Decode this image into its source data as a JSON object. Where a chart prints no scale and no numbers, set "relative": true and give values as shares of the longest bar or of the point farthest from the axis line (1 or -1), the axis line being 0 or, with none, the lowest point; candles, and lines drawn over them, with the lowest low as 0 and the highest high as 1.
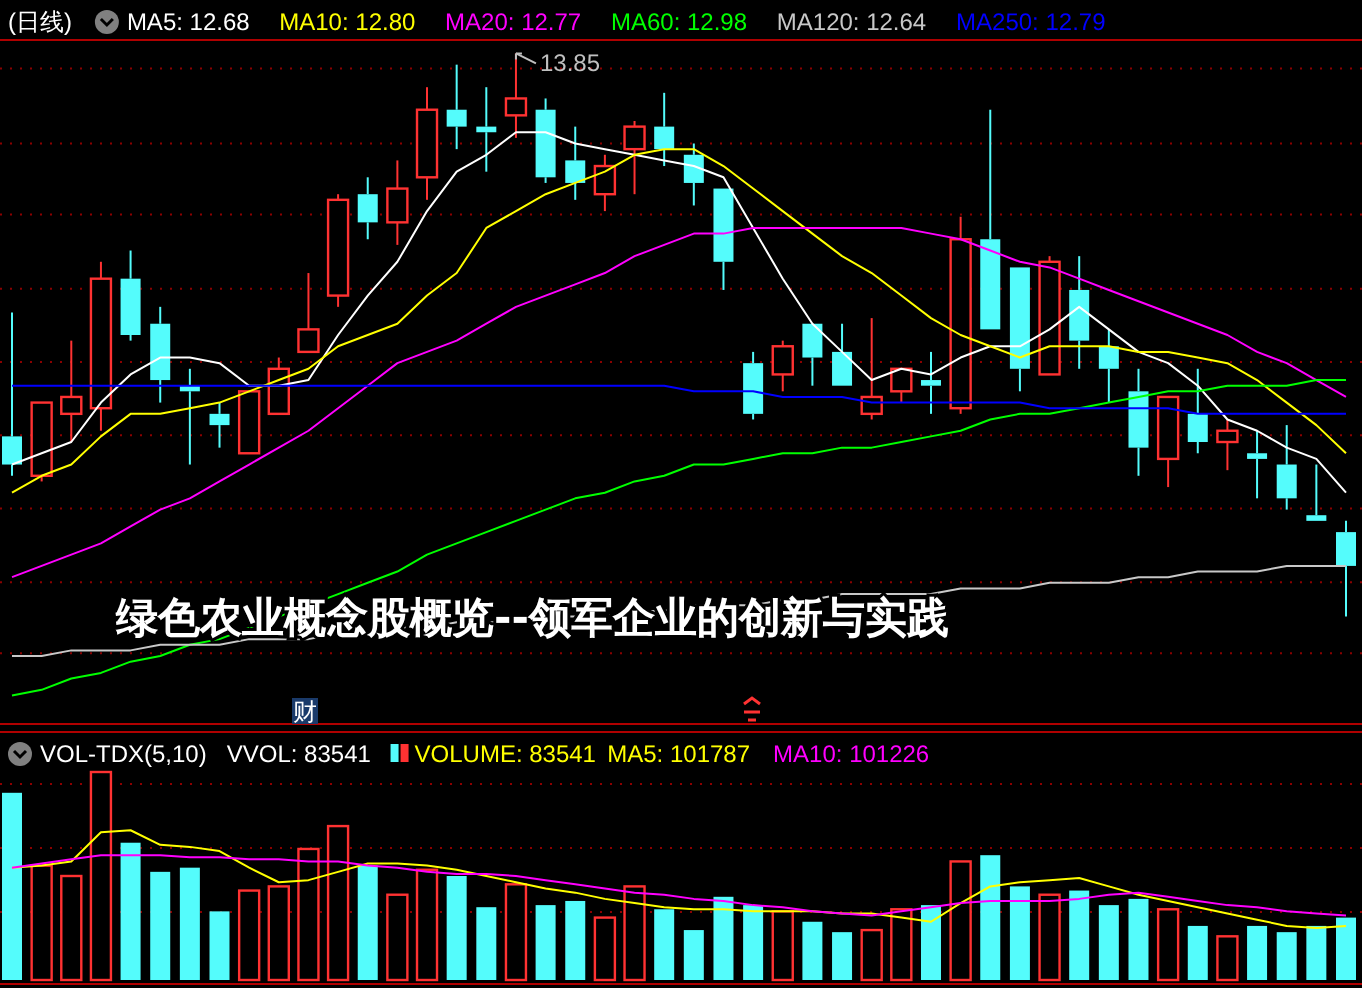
{
  "chart_data": [
    {
      "type": "candlestick",
      "title": "绿色农业概念股概览--领军企业的创新与实践",
      "subtitle": "(日线)",
      "relative": true,
      "legend": "top left",
      "ref_lines": [
        {
          "axis": "y",
          "value": 0.973,
          "color": "#8b0000",
          "line_style": "dotted"
        },
        {
          "axis": "y",
          "value": 0.84,
          "color": "#8b0000",
          "line_style": "dotted"
        },
        {
          "axis": "y",
          "value": 0.714,
          "color": "#8b0000",
          "line_style": "dotted"
        },
        {
          "axis": "y",
          "value": 0.582,
          "color": "#8b0000",
          "line_style": "dotted"
        },
        {
          "axis": "y",
          "value": 0.452,
          "color": "#8b0000",
          "line_style": "dotted"
        },
        {
          "axis": "y",
          "value": 0.322,
          "color": "#8b0000",
          "line_style": "dotted"
        },
        {
          "axis": "y",
          "value": 0.192,
          "color": "#8b0000",
          "line_style": "dotted"
        },
        {
          "axis": "y",
          "value": 0.061,
          "color": "#8b0000",
          "line_style": "dotted"
        },
        {
          "axis": "y",
          "value": -0.065,
          "color": "#8b0000",
          "line_style": "dotted"
        }
      ],
      "categories": [
        null,
        null,
        null,
        null,
        null,
        null,
        null,
        null,
        null,
        null,
        null,
        null,
        null,
        null,
        null,
        null,
        null,
        null,
        null,
        null,
        null,
        null,
        null,
        null,
        null,
        null,
        null,
        null,
        null,
        null,
        null,
        null,
        null,
        null,
        null,
        null,
        null,
        null,
        null,
        null,
        null,
        null,
        null,
        null,
        null,
        null
      ],
      "ohlc": [
        [
          0.32,
          0.54,
          0.25,
          0.27
        ],
        [
          0.25,
          0.38,
          0.24,
          0.38
        ],
        [
          0.36,
          0.49,
          0.31,
          0.39
        ],
        [
          0.37,
          0.63,
          0.33,
          0.6
        ],
        [
          0.6,
          0.65,
          0.49,
          0.5
        ],
        [
          0.52,
          0.55,
          0.38,
          0.42
        ],
        [
          0.41,
          0.44,
          0.27,
          0.4
        ],
        [
          0.36,
          0.38,
          0.3,
          0.34
        ],
        [
          0.29,
          0.4,
          0.29,
          0.4
        ],
        [
          0.36,
          0.46,
          0.36,
          0.44
        ],
        [
          0.47,
          0.61,
          0.47,
          0.51
        ],
        [
          0.57,
          0.75,
          0.55,
          0.74
        ],
        [
          0.75,
          0.78,
          0.67,
          0.7
        ],
        [
          0.7,
          0.81,
          0.66,
          0.76
        ],
        [
          0.78,
          0.94,
          0.74,
          0.9
        ],
        [
          0.9,
          0.98,
          0.83,
          0.87
        ],
        [
          0.87,
          0.94,
          0.79,
          0.86
        ],
        [
          0.89,
          1,
          0.85,
          0.92
        ],
        [
          0.9,
          0.92,
          0.77,
          0.78
        ],
        [
          0.81,
          0.87,
          0.74,
          0.77
        ],
        [
          0.75,
          0.82,
          0.72,
          0.8
        ],
        [
          0.83,
          0.88,
          0.75,
          0.87
        ],
        [
          0.87,
          0.93,
          0.8,
          0.83
        ],
        [
          0.82,
          0.84,
          0.73,
          0.77
        ],
        [
          0.76,
          0.76,
          0.58,
          0.63
        ],
        [
          0.45,
          0.47,
          0.35,
          0.36
        ],
        [
          0.43,
          0.49,
          0.4,
          0.48
        ],
        [
          0.52,
          0.52,
          0.41,
          0.46
        ],
        [
          0.47,
          0.52,
          0.41,
          0.41
        ],
        [
          0.36,
          0.53,
          0.35,
          0.39
        ],
        [
          0.4,
          0.44,
          0.38,
          0.44
        ],
        [
          0.42,
          0.47,
          0.36,
          0.41
        ],
        [
          0.37,
          0.71,
          0.36,
          0.67
        ],
        [
          0.67,
          0.9,
          0.51,
          0.51
        ],
        [
          0.62,
          0.62,
          0.4,
          0.44
        ],
        [
          0.43,
          0.64,
          0.43,
          0.63
        ],
        [
          0.58,
          0.64,
          0.44,
          0.49
        ],
        [
          0.48,
          0.51,
          0.38,
          0.44
        ],
        [
          0.4,
          0.44,
          0.25,
          0.3
        ],
        [
          0.28,
          0.39,
          0.23,
          0.39
        ],
        [
          0.36,
          0.44,
          0.29,
          0.31
        ],
        [
          0.31,
          0.35,
          0.26,
          0.33
        ],
        [
          0.29,
          0.33,
          0.21,
          0.28
        ],
        [
          0.27,
          0.34,
          0.19,
          0.21
        ],
        [
          0.18,
          0.27,
          0.17,
          0.17
        ],
        [
          0.15,
          0.17,
          0,
          0.09
        ]
      ],
      "colors": [
        "#54fcfc",
        "#ff3232",
        "#ff3232",
        "#ff3232",
        "#54fcfc",
        "#54fcfc",
        "#54fcfc",
        "#54fcfc",
        "#ff3232",
        "#ff3232",
        "#ff3232",
        "#ff3232",
        "#54fcfc",
        "#ff3232",
        "#ff3232",
        "#54fcfc",
        "#54fcfc",
        "#ff3232",
        "#54fcfc",
        "#54fcfc",
        "#ff3232",
        "#ff3232",
        "#54fcfc",
        "#54fcfc",
        "#54fcfc",
        "#54fcfc",
        "#ff3232",
        "#54fcfc",
        "#54fcfc",
        "#ff3232",
        "#ff3232",
        "#54fcfc",
        "#ff3232",
        "#54fcfc",
        "#54fcfc",
        "#ff3232",
        "#54fcfc",
        "#54fcfc",
        "#54fcfc",
        "#ff3232",
        "#54fcfc",
        "#ff3232",
        "#54fcfc",
        "#54fcfc",
        "#54fcfc",
        "#54fcfc"
      ],
      "series": [
        {
          "name": "MA5: 12.68",
          "type": "line",
          "color": "#ffffff",
          "values": [
            0.27,
            0.29,
            0.31,
            0.38,
            0.43,
            0.46,
            0.46,
            0.45,
            0.41,
            0.41,
            0.42,
            0.5,
            0.57,
            0.63,
            0.72,
            0.79,
            0.82,
            0.86,
            0.86,
            0.84,
            0.83,
            0.82,
            0.81,
            0.8,
            0.78,
            0.69,
            0.6,
            0.52,
            0.47,
            0.42,
            0.44,
            0.43,
            0.46,
            0.48,
            0.48,
            0.51,
            0.55,
            0.51,
            0.47,
            0.45,
            0.41,
            0.35,
            0.33,
            0.3,
            0.28,
            0.22
          ]
        },
        {
          "name": "MA10: 12.80",
          "type": "line",
          "color": "#ffff00",
          "values": [
            0.22,
            0.25,
            0.27,
            0.32,
            0.36,
            0.36,
            0.37,
            0.38,
            0.4,
            0.42,
            0.44,
            0.48,
            0.5,
            0.52,
            0.57,
            0.61,
            0.69,
            0.72,
            0.75,
            0.77,
            0.79,
            0.82,
            0.83,
            0.83,
            0.8,
            0.76,
            0.72,
            0.68,
            0.64,
            0.61,
            0.57,
            0.53,
            0.5,
            0.48,
            0.46,
            0.48,
            0.48,
            0.48,
            0.47,
            0.47,
            0.46,
            0.45,
            0.42,
            0.38,
            0.34,
            0.29
          ]
        },
        {
          "name": "MA20: 12.77",
          "type": "line",
          "color": "#ff00ff",
          "values": [
            0.07,
            0.09,
            0.11,
            0.13,
            0.16,
            0.19,
            0.21,
            0.24,
            0.27,
            0.3,
            0.33,
            0.37,
            0.41,
            0.45,
            0.47,
            0.49,
            0.52,
            0.55,
            0.57,
            0.59,
            0.61,
            0.64,
            0.66,
            0.68,
            0.68,
            0.69,
            0.69,
            0.69,
            0.69,
            0.69,
            0.69,
            0.68,
            0.67,
            0.65,
            0.63,
            0.62,
            0.6,
            0.58,
            0.56,
            0.54,
            0.52,
            0.5,
            0.47,
            0.45,
            0.42,
            0.39
          ]
        },
        {
          "name": "MA60: 12.98",
          "type": "line",
          "color": "#00ff00",
          "values": [
            -0.14,
            -0.13,
            -0.11,
            -0.1,
            -0.08,
            -0.07,
            -0.05,
            -0.04,
            -0.02,
            0,
            null,
            0.04,
            0.06,
            0.08,
            0.11,
            0.13,
            0.15,
            0.17,
            0.19,
            0.21,
            0.22,
            0.24,
            0.25,
            0.27,
            0.27,
            0.28,
            0.29,
            0.29,
            0.3,
            0.3,
            0.31,
            0.32,
            0.33,
            0.35,
            0.36,
            0.36,
            0.37,
            0.38,
            0.39,
            0.4,
            0.4,
            0.41,
            0.41,
            0.41,
            0.42,
            0.42
          ]
        },
        {
          "name": "MA120: 12.64",
          "type": "line",
          "color": "#c8c8c8",
          "values": [
            -0.07,
            -0.07,
            -0.06,
            -0.06,
            -0.06,
            -0.05,
            -0.05,
            -0.05,
            -0.04,
            -0.04,
            -0.04,
            -0.03,
            -0.03,
            -0.02,
            -0.02,
            -0.01,
            -0.01,
            -0.01,
            0,
            0,
            0,
            0.01,
            0.01,
            0.02,
            0.02,
            0.02,
            0.03,
            0.03,
            0.04,
            0.04,
            0.04,
            0.04,
            0.05,
            0.05,
            0.05,
            0.06,
            0.06,
            0.06,
            0.07,
            0.07,
            0.08,
            0.08,
            0.08,
            0.09,
            0.09,
            0.09
          ]
        },
        {
          "name": "MA250: 12.79",
          "type": "line",
          "color": "#0000ff",
          "values": [
            0.41,
            0.41,
            0.41,
            0.41,
            0.41,
            0.41,
            0.41,
            0.41,
            0.41,
            0.41,
            0.41,
            0.41,
            0.41,
            0.41,
            0.41,
            0.41,
            0.41,
            0.41,
            0.41,
            0.41,
            0.41,
            0.41,
            0.41,
            0.4,
            0.4,
            0.4,
            0.39,
            0.39,
            0.39,
            0.38,
            0.38,
            0.38,
            0.38,
            0.38,
            0.38,
            0.37,
            0.37,
            0.37,
            0.37,
            0.37,
            0.36,
            0.36,
            0.36,
            0.36,
            0.36,
            0.36
          ]
        }
      ],
      "annotations": [
        "13.85",
        "财"
      ]
    },
    {
      "type": "bar",
      "title": "VOL-TDX(5,10)",
      "subtitle": "VVOL: 83541",
      "relative": true,
      "legend": "top left",
      "ref_lines": [
        {
          "axis": "y",
          "value": 0.942,
          "color": "#8b0000",
          "line_style": "dotted"
        },
        {
          "axis": "y",
          "value": 0.635,
          "color": "#8b0000",
          "line_style": "dotted"
        },
        {
          "axis": "y",
          "value": 0.327,
          "color": "#8b0000",
          "line_style": "dotted"
        }
      ],
      "categories": [
        null,
        null,
        null,
        null,
        null,
        null,
        null,
        null,
        null,
        null,
        null,
        null,
        null,
        null,
        null,
        null,
        null,
        null,
        null,
        null,
        null,
        null,
        null,
        null,
        null,
        null,
        null,
        null,
        null,
        null,
        null,
        null,
        null,
        null,
        null,
        null,
        null,
        null,
        null,
        null,
        null,
        null,
        null,
        null,
        null,
        null
      ],
      "series": [
        {
          "name": "VOLUME: 83541",
          "type": "bar",
          "color": "#ffff00",
          "values": [
            0.9,
            0.55,
            0.5,
            1,
            0.66,
            0.52,
            0.54,
            0.33,
            0.43,
            0.45,
            0.63,
            0.74,
            0.55,
            0.41,
            0.53,
            0.5,
            0.35,
            0.46,
            0.36,
            0.38,
            0.3,
            0.45,
            0.34,
            0.24,
            0.4,
            0.36,
            0.33,
            0.28,
            0.23,
            0.24,
            0.34,
            0.36,
            0.57,
            0.6,
            0.45,
            0.41,
            0.43,
            0.36,
            0.39,
            0.34,
            0.26,
            0.21,
            0.26,
            0.23,
            0.26,
            0.3
          ],
          "colors": [
            "#54fcfc",
            "#ff3232",
            "#ff3232",
            "#ff3232",
            "#54fcfc",
            "#54fcfc",
            "#54fcfc",
            "#54fcfc",
            "#ff3232",
            "#ff3232",
            "#ff3232",
            "#ff3232",
            "#54fcfc",
            "#ff3232",
            "#ff3232",
            "#54fcfc",
            "#54fcfc",
            "#ff3232",
            "#54fcfc",
            "#54fcfc",
            "#ff3232",
            "#ff3232",
            "#54fcfc",
            "#54fcfc",
            "#54fcfc",
            "#54fcfc",
            "#ff3232",
            "#54fcfc",
            "#54fcfc",
            "#ff3232",
            "#ff3232",
            "#54fcfc",
            "#ff3232",
            "#54fcfc",
            "#54fcfc",
            "#ff3232",
            "#54fcfc",
            "#54fcfc",
            "#54fcfc",
            "#ff3232",
            "#54fcfc",
            "#ff3232",
            "#54fcfc",
            "#54fcfc",
            "#54fcfc",
            "#54fcfc"
          ]
        },
        {
          "name": "MA5: 101787",
          "type": "line",
          "color": "#ffff00",
          "values": [
            0.54,
            0.55,
            0.57,
            0.71,
            0.72,
            0.65,
            0.64,
            0.62,
            0.54,
            0.47,
            0.48,
            0.52,
            0.56,
            0.56,
            0.55,
            0.53,
            0.5,
            0.47,
            0.44,
            0.42,
            0.39,
            0.37,
            0.35,
            0.34,
            0.34,
            0.33,
            0.33,
            0.33,
            0.32,
            0.32,
            0.3,
            0.28,
            0.37,
            0.45,
            0.47,
            0.48,
            0.49,
            0.45,
            0.41,
            0.38,
            0.35,
            0.32,
            0.29,
            0.26,
            0.25,
            0.26
          ]
        },
        {
          "name": "MA10: 101226",
          "type": "line",
          "color": "#ff00ff",
          "values": [
            0.54,
            0.56,
            0.58,
            0.6,
            0.6,
            0.6,
            0.59,
            0.59,
            0.58,
            0.58,
            0.57,
            0.57,
            0.55,
            0.54,
            0.52,
            0.51,
            0.51,
            0.5,
            0.48,
            0.46,
            0.44,
            0.42,
            0.41,
            0.39,
            0.38,
            0.36,
            0.35,
            0.33,
            0.32,
            0.31,
            0.33,
            0.35,
            0.37,
            0.38,
            0.38,
            0.38,
            0.39,
            0.41,
            0.42,
            0.4,
            0.38,
            0.36,
            0.35,
            0.33,
            0.32,
            0.31
          ]
        }
      ]
    }
  ]
}
